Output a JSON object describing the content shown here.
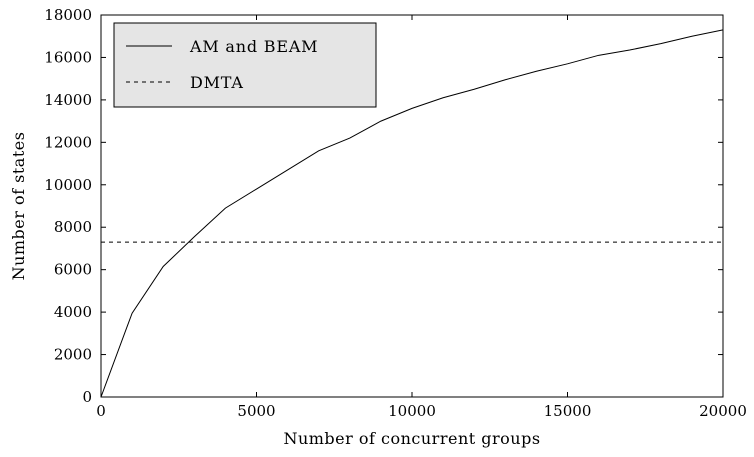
{
  "chart_data": {
    "type": "line",
    "title": "",
    "xlabel": "Number of concurrent groups",
    "ylabel": "Number of states",
    "xlim": [
      0,
      20000
    ],
    "ylim": [
      0,
      18000
    ],
    "x_ticks": [
      0,
      5000,
      10000,
      15000,
      20000
    ],
    "y_ticks": [
      0,
      2000,
      4000,
      6000,
      8000,
      10000,
      12000,
      14000,
      16000,
      18000
    ],
    "x_tick_labels": [
      "0",
      "5000",
      "10000",
      "15000",
      "20000"
    ],
    "y_tick_labels": [
      "0",
      "2000",
      "4000",
      "6000",
      "8000",
      "10000",
      "12000",
      "14000",
      "16000",
      "18000"
    ],
    "grid": false,
    "legend_position": "top-left",
    "series": [
      {
        "name": "AM and BEAM",
        "style": "solid",
        "color": "#000000",
        "x": [
          0,
          1000,
          2000,
          3000,
          4000,
          5000,
          6000,
          7000,
          8000,
          9000,
          10000,
          11000,
          12000,
          13000,
          14000,
          15000,
          16000,
          17000,
          18000,
          19000,
          20000
        ],
        "y": [
          0,
          3950,
          6150,
          7550,
          8900,
          9800,
          10700,
          11600,
          12200,
          13000,
          13600,
          14100,
          14500,
          14950,
          15350,
          15700,
          16100,
          16350,
          16650,
          17000,
          17300
        ]
      },
      {
        "name": "DMTA",
        "style": "dashed",
        "color": "#000000",
        "x": [
          0,
          20000
        ],
        "y": [
          7300,
          7300
        ]
      }
    ]
  }
}
